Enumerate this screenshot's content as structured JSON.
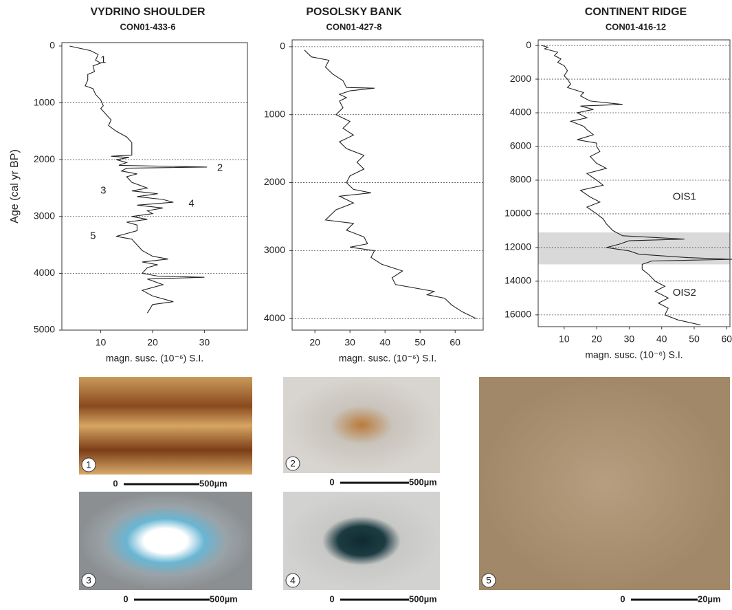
{
  "chart_data": [
    {
      "type": "line",
      "title": "VYDRINO SHOULDER",
      "subtitle": "CON01-433-6",
      "xlabel": "magn. susc. (10⁻⁶) S.I.",
      "ylabel": "Age (cal yr BP)",
      "invert_y": true,
      "grid": true,
      "xlim": [
        2.5,
        38.3
      ],
      "xticks": [
        10,
        20,
        30
      ],
      "ylim": [
        -60,
        5000
      ],
      "yticks": [
        0,
        1000,
        2000,
        3000,
        4000,
        5000
      ],
      "y": [
        0,
        80,
        150,
        250,
        300,
        350,
        450,
        500,
        600,
        700,
        750,
        850,
        950,
        1050,
        1100,
        1200,
        1300,
        1400,
        1500,
        1600,
        1700,
        1800,
        1920,
        1940,
        1960,
        2000,
        2050,
        2100,
        2130,
        2150,
        2200,
        2250,
        2300,
        2400,
        2500,
        2550,
        2600,
        2650,
        2700,
        2750,
        2800,
        2850,
        2900,
        2950,
        3000,
        3050,
        3100,
        3150,
        3250,
        3300,
        3350,
        3400,
        3500,
        3600,
        3700,
        3750,
        3800,
        3850,
        3900,
        4000,
        4050,
        4070,
        4100,
        4200,
        4300,
        4400,
        4500,
        4550,
        4700
      ],
      "series": [
        {
          "color": "#222222",
          "values": [
            4,
            8,
            9.5,
            9,
            10,
            8.5,
            8.8,
            7.5,
            7.5,
            7,
            8.5,
            9,
            10,
            10.5,
            10,
            11,
            12,
            11.5,
            13,
            15,
            16,
            16,
            16,
            12,
            15.5,
            13,
            15,
            13.5,
            30.5,
            15,
            14,
            17,
            15,
            16,
            19,
            16,
            21,
            17,
            22,
            24,
            17,
            22,
            19,
            20,
            16,
            19,
            15,
            17,
            17,
            15,
            13,
            16,
            17,
            18,
            20,
            23,
            18,
            21,
            19,
            18,
            21,
            30,
            19,
            22,
            18,
            20,
            24,
            20,
            19
          ]
        }
      ],
      "annotations": [
        {
          "text": "1",
          "x": 10.5,
          "y": 250
        },
        {
          "text": "2",
          "x": 33,
          "y": 2150
        },
        {
          "text": "3",
          "x": 10.5,
          "y": 2550
        },
        {
          "text": "4",
          "x": 27.5,
          "y": 2780
        },
        {
          "text": "5",
          "x": 8.5,
          "y": 3350
        }
      ]
    },
    {
      "type": "line",
      "title": "POSOLSKY BANK",
      "subtitle": "CON01-427-8",
      "xlabel": "magn. susc. (10⁻⁶) S.I.",
      "invert_y": true,
      "grid": true,
      "xlim": [
        13.5,
        68
      ],
      "xticks": [
        20,
        30,
        40,
        50,
        60
      ],
      "ylim": [
        -100,
        4170
      ],
      "yticks": [
        0,
        1000,
        2000,
        3000,
        4000
      ],
      "y": [
        50,
        100,
        150,
        200,
        300,
        400,
        500,
        600,
        610,
        650,
        700,
        750,
        800,
        900,
        1000,
        1100,
        1200,
        1300,
        1400,
        1500,
        1600,
        1700,
        1800,
        1900,
        2000,
        2100,
        2150,
        2200,
        2300,
        2400,
        2550,
        2600,
        2700,
        2800,
        2900,
        2950,
        3000,
        3100,
        3200,
        3300,
        3400,
        3500,
        3600,
        3650,
        3700,
        3800,
        3900,
        4000
      ],
      "series": [
        {
          "color": "#222222",
          "values": [
            17,
            18,
            19,
            24,
            23,
            25,
            28,
            29,
            37,
            30,
            27,
            29,
            27,
            28,
            26,
            30,
            28,
            31,
            27,
            29,
            34,
            32,
            34,
            30,
            29,
            31,
            36,
            27,
            31,
            26,
            23,
            31,
            29,
            34,
            35,
            30,
            37,
            36,
            39,
            45,
            42,
            43,
            54,
            52,
            57,
            59,
            62,
            66
          ]
        }
      ]
    },
    {
      "type": "line",
      "title": "CONTINENT RIDGE",
      "subtitle": "CON01-416-12",
      "xlabel": "magn. susc. (10⁻⁶) S.I.",
      "invert_y": true,
      "grid": true,
      "xlim": [
        2,
        61
      ],
      "xticks": [
        10,
        20,
        30,
        40,
        50,
        60
      ],
      "ylim": [
        -330,
        16700
      ],
      "yticks": [
        0,
        2000,
        4000,
        6000,
        8000,
        10000,
        12000,
        14000,
        16000
      ],
      "shaded_band": [
        11100,
        13000
      ],
      "shaded_color": "#d9d9d9",
      "y": [
        0,
        100,
        200,
        400,
        600,
        800,
        1000,
        1200,
        1500,
        1800,
        2000,
        2300,
        2500,
        2800,
        3000,
        3300,
        3500,
        3600,
        3800,
        4000,
        4300,
        4500,
        4800,
        5000,
        5300,
        5600,
        5800,
        6000,
        6300,
        6600,
        7000,
        7300,
        7600,
        8000,
        8300,
        8600,
        9000,
        9300,
        9600,
        10000,
        10300,
        10600,
        11000,
        11300,
        11500,
        11600,
        11800,
        12000,
        12200,
        12400,
        12600,
        12700,
        12800,
        13000,
        13300,
        13600,
        14000,
        14300,
        14600,
        15000,
        15300,
        15600,
        16000,
        16300,
        16600
      ],
      "series": [
        {
          "color": "#222222",
          "values": [
            3,
            5,
            4,
            8,
            7,
            9,
            8,
            10,
            11,
            10,
            11,
            12,
            11,
            16,
            15,
            18,
            28,
            15,
            19,
            14,
            17,
            12,
            16,
            17,
            19,
            14,
            20,
            20,
            21,
            18,
            20,
            23,
            17,
            20,
            22,
            15,
            18,
            21,
            17,
            20,
            22,
            23,
            25,
            28,
            47,
            30,
            27,
            23,
            30,
            33,
            48,
            62,
            37,
            34,
            34,
            36,
            38,
            41,
            38,
            42,
            39,
            42,
            41,
            45,
            52
          ]
        }
      ],
      "annotations": [
        {
          "text": "OIS1",
          "x": 47,
          "y": 9000
        },
        {
          "text": "OIS2",
          "x": 47,
          "y": 14700
        }
      ]
    }
  ],
  "micrographs": [
    {
      "label": "1",
      "scale_start": "0",
      "scale_end": "500µm"
    },
    {
      "label": "2",
      "scale_start": "0",
      "scale_end": "500µm"
    },
    {
      "label": "3",
      "scale_start": "0",
      "scale_end": "500µm"
    },
    {
      "label": "4",
      "scale_start": "0",
      "scale_end": "500µm"
    },
    {
      "label": "5",
      "scale_start": "0",
      "scale_end": "20µm"
    }
  ]
}
